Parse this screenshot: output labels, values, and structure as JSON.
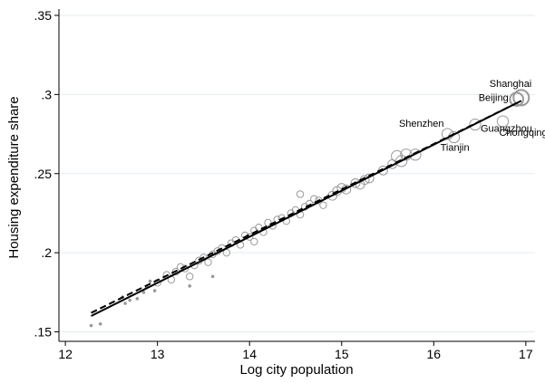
{
  "chart_data": {
    "type": "scatter",
    "x_label": "Log city population",
    "y_label": "Housing expenditure share",
    "xlim": [
      11.93,
      17.1
    ],
    "ylim": [
      0.144,
      0.354
    ],
    "xticks": [
      12,
      13,
      14,
      15,
      16,
      17
    ],
    "yticks": [
      {
        "value": 0.15,
        "label": ".15"
      },
      {
        "value": 0.2,
        "label": ".2"
      },
      {
        "value": 0.25,
        "label": ".25"
      },
      {
        "value": 0.3,
        "label": ".3"
      },
      {
        "value": 0.35,
        "label": ".35"
      }
    ],
    "grid": true,
    "series": [
      {
        "color": "#999999",
        "x": [
          12.28,
          12.38,
          12.7,
          12.65,
          12.78,
          12.85,
          12.88,
          12.92,
          12.62,
          13.0,
          13.1,
          13.15,
          13.2,
          13.25,
          13.3,
          13.35,
          13.4,
          13.45,
          13.5,
          13.55,
          13.6,
          13.65,
          13.7,
          13.75,
          13.8,
          13.85,
          13.9,
          13.95,
          14.0,
          14.05,
          14.1,
          14.15,
          14.2,
          14.25,
          14.3,
          14.35,
          14.4,
          14.45,
          14.5,
          14.55,
          14.6,
          14.65,
          14.7,
          14.75,
          14.8,
          14.9,
          14.95,
          15.0,
          15.05,
          15.15,
          15.25,
          15.3,
          15.2,
          15.45,
          15.55,
          15.6,
          15.65,
          15.7,
          15.8,
          13.35,
          13.6,
          12.97,
          14.55,
          14.05
        ],
        "values": [
          0.154,
          0.155,
          0.17,
          0.168,
          0.171,
          0.175,
          0.178,
          0.182,
          0.172,
          0.181,
          0.186,
          0.183,
          0.188,
          0.191,
          0.19,
          0.185,
          0.192,
          0.195,
          0.197,
          0.194,
          0.199,
          0.201,
          0.203,
          0.2,
          0.206,
          0.208,
          0.205,
          0.211,
          0.21,
          0.214,
          0.216,
          0.213,
          0.219,
          0.217,
          0.221,
          0.222,
          0.22,
          0.225,
          0.227,
          0.224,
          0.229,
          0.231,
          0.234,
          0.233,
          0.23,
          0.236,
          0.239,
          0.241,
          0.24,
          0.244,
          0.246,
          0.247,
          0.243,
          0.252,
          0.256,
          0.261,
          0.258,
          0.262,
          0.262,
          0.179,
          0.185,
          0.176,
          0.237,
          0.207
        ],
        "size": [
          1,
          1,
          1,
          1,
          1,
          1,
          1,
          1,
          1,
          2,
          2,
          2,
          2,
          2,
          2,
          2,
          2,
          2,
          2,
          2,
          2,
          2,
          2,
          2,
          2,
          2,
          2,
          2,
          2,
          2,
          2,
          2,
          2,
          2,
          2,
          2,
          2,
          2,
          2,
          2,
          2,
          2,
          2,
          2,
          2,
          3,
          3,
          3,
          3,
          3,
          3,
          3,
          3,
          3,
          3,
          4,
          4,
          4,
          4,
          1,
          1,
          1,
          2,
          2
        ]
      },
      {
        "color": "#999999",
        "labels": [
          "Shanghai",
          "Beijing",
          "Chongqing",
          "Guangzhou",
          "Shenzhen",
          "Tianjin"
        ],
        "x": [
          16.95,
          16.9,
          16.75,
          16.45,
          16.15,
          16.22
        ],
        "values": [
          0.298,
          0.297,
          0.283,
          0.281,
          0.275,
          0.273
        ],
        "size": [
          6,
          5,
          4,
          4,
          4,
          4
        ]
      }
    ],
    "fit_lines": [
      {
        "style": "solid",
        "color": "#000000",
        "x": [
          12.28,
          16.95
        ],
        "values": [
          0.16,
          0.296
        ]
      },
      {
        "style": "dashed",
        "color": "#000000",
        "x": [
          12.28,
          16.95
        ],
        "values": [
          0.162,
          0.296
        ]
      }
    ]
  }
}
